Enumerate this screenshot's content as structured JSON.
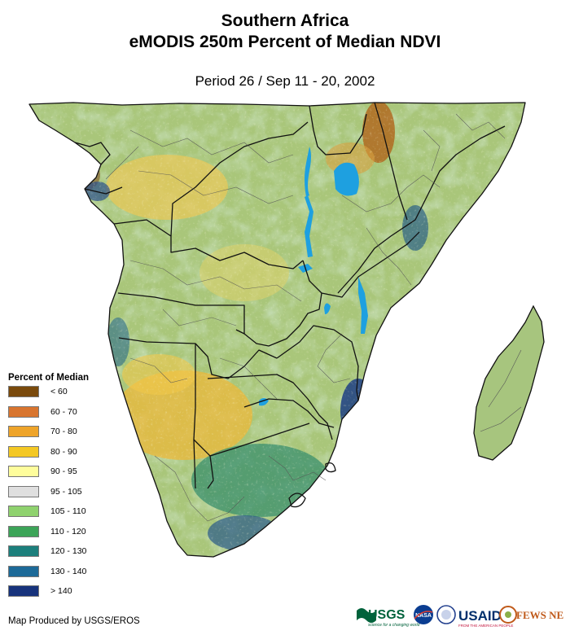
{
  "header": {
    "title_line1": "Southern Africa",
    "title_line2": "eMODIS 250m Percent of Median NDVI",
    "period": "Period 26 / Sep 11 - 20, 2002"
  },
  "legend": {
    "title": "Percent of Median",
    "items": [
      {
        "label": "< 60",
        "color": "#7a4a0c"
      },
      {
        "label": "60 - 70",
        "color": "#d8752f"
      },
      {
        "label": "70 - 80",
        "color": "#eea42a"
      },
      {
        "label": "80 - 90",
        "color": "#f4c824"
      },
      {
        "label": "90 - 95",
        "color": "#fefd9c"
      },
      {
        "label": "95 - 105",
        "color": "#dfdfdf"
      },
      {
        "label": "105 - 110",
        "color": "#8fd26e"
      },
      {
        "label": "110 - 120",
        "color": "#3ca458"
      },
      {
        "label": "120 - 130",
        "color": "#1c7f7c"
      },
      {
        "label": "130 - 140",
        "color": "#1d6a98"
      },
      {
        "label": "> 140",
        "color": "#17337c"
      }
    ]
  },
  "footer": {
    "credit": "Map Produced by USGS/EROS",
    "logos": [
      {
        "name": "USGS",
        "tagline": "science for a changing world"
      },
      {
        "name": "NASA"
      },
      {
        "name": "USAID",
        "tagline": "FROM THE AMERICAN PEOPLE"
      },
      {
        "name": "FEWS NET"
      }
    ]
  },
  "colors": {
    "land_base": "#a9c67a",
    "water": "#1ea0e0",
    "border": "#111111",
    "admin_border": "#555555"
  }
}
